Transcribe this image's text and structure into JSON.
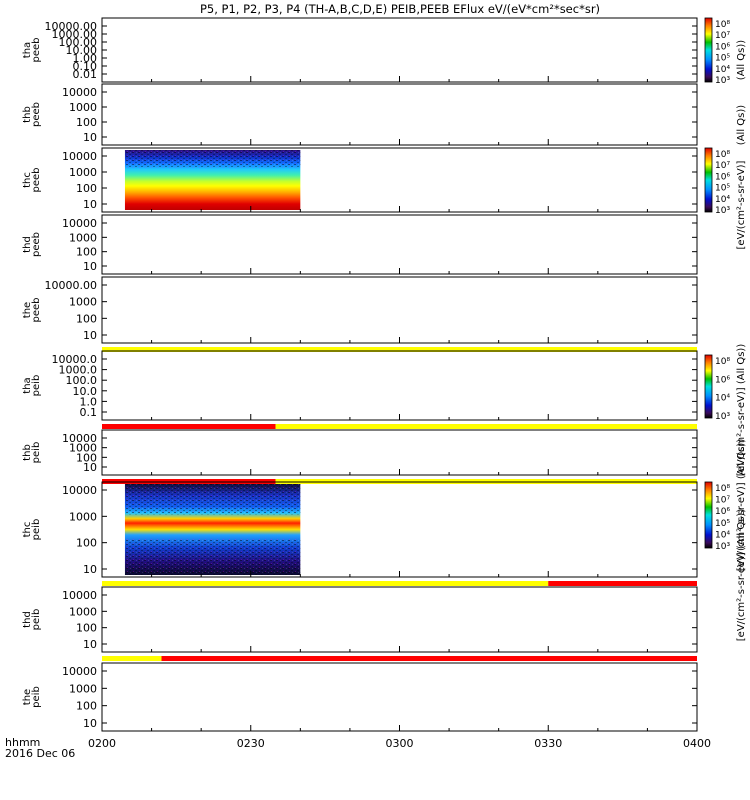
{
  "chart_data": {
    "type": "heatmap",
    "title": "P5, P1, P2, P3, P4 (TH-A,B,C,D,E) PEIB,PEEB EFlux eV/(eV*cm²*sec*sr)",
    "x_axis": {
      "label": "hhmm",
      "date": "2016 Dec 06",
      "ticks": [
        "0200",
        "0230",
        "0300",
        "0330",
        "0400"
      ],
      "range": [
        "02:00",
        "04:00"
      ]
    },
    "panels": [
      {
        "label": [
          "tha",
          "peeb"
        ],
        "yscale": "log",
        "ytick_labels": [
          "10000.00",
          "1000.00",
          "100.00",
          "10.00",
          "1.00",
          "0.10",
          "0.01"
        ],
        "data": "none",
        "colorbar": {
          "label": "(All Qs))",
          "tick_labels": [
            "10^8",
            "10^7",
            "10^6",
            "10^5",
            "10^4",
            "10^3"
          ]
        }
      },
      {
        "label": [
          "thb",
          "peeb"
        ],
        "yscale": "log",
        "ytick_labels": [
          "10000",
          "1000",
          "100",
          "10"
        ],
        "data": "none",
        "colorbar_label": "(All Qs))"
      },
      {
        "label": [
          "thc",
          "peeb"
        ],
        "yscale": "log",
        "ytick_labels": [
          "10000",
          "1000",
          "100",
          "10"
        ],
        "data": "spectrogram 02:01-02:40, flux decreasing with energy",
        "colorbar": {
          "label": "[eV/(cm^2-s-sr-eV)]",
          "tick_labels": [
            "10^8",
            "10^7",
            "10^6",
            "10^5",
            "10^4",
            "10^3"
          ]
        }
      },
      {
        "label": [
          "thd",
          "peeb"
        ],
        "yscale": "log",
        "ytick_labels": [
          "10000",
          "1000",
          "100",
          "10"
        ],
        "data": "none"
      },
      {
        "label": [
          "the",
          "peeb"
        ],
        "yscale": "log",
        "ytick_labels": [
          "10000.00",
          "1000",
          "100",
          "10"
        ],
        "data": "none",
        "status_bar": [
          {
            "from": "02:00",
            "to": "04:00",
            "color": "#ffff00"
          }
        ]
      },
      {
        "label": [
          "tha",
          "peib"
        ],
        "yscale": "log",
        "ytick_labels": [
          "10000.0",
          "1000.0",
          "100.0",
          "10.0",
          "1.0",
          "0.1"
        ],
        "data": "none",
        "colorbar": {
          "label": "[eV/(cm^2-s-sr-eV)] (All Qs))",
          "tick_labels": [
            "10^8",
            "10^6",
            "10^4",
            "10^3"
          ]
        },
        "status_bar": [
          {
            "from": "02:00",
            "to": "02:35",
            "color": "#ff0000"
          },
          {
            "from": "02:35",
            "to": "04:00",
            "color": "#ffff00"
          }
        ]
      },
      {
        "label": [
          "thb",
          "peib"
        ],
        "yscale": "log",
        "ytick_labels": [
          "10000",
          "1000",
          "100",
          "10"
        ],
        "data": "none",
        "colorbar_label": "[eV/(cm^2-s-sr-eV)] (All Qs))",
        "status_bar": [
          {
            "from": "02:00",
            "to": "02:35",
            "color": "#ff0000"
          },
          {
            "from": "02:35",
            "to": "04:00",
            "color": "#ffff00"
          }
        ]
      },
      {
        "label": [
          "thc",
          "peib"
        ],
        "yscale": "log",
        "ytick_labels": [
          "10000",
          "1000",
          "100",
          "10"
        ],
        "data": "spectrogram 02:01-02:40, peak band near 600 eV",
        "colorbar": {
          "label": "[eV/(cm^2-s-sr-eV)] (All Qs))",
          "tick_labels": [
            "10^8",
            "10^7",
            "10^6",
            "10^5",
            "10^4",
            "10^3"
          ]
        },
        "status_bar": [
          {
            "from": "02:00",
            "to": "03:30",
            "color": "#ffff00"
          },
          {
            "from": "03:30",
            "to": "04:00",
            "color": "#ff0000"
          }
        ]
      },
      {
        "label": [
          "thd",
          "peib"
        ],
        "yscale": "log",
        "ytick_labels": [
          "10000",
          "1000",
          "100",
          "10"
        ],
        "data": "none",
        "status_bar": [
          {
            "from": "02:00",
            "to": "02:12",
            "color": "#ffff00"
          },
          {
            "from": "02:12",
            "to": "04:00",
            "color": "#ff0000"
          }
        ]
      },
      {
        "label": [
          "the",
          "peib"
        ],
        "yscale": "log",
        "ytick_labels": [
          "10000",
          "1000",
          "100",
          "10"
        ],
        "data": "none"
      }
    ]
  }
}
